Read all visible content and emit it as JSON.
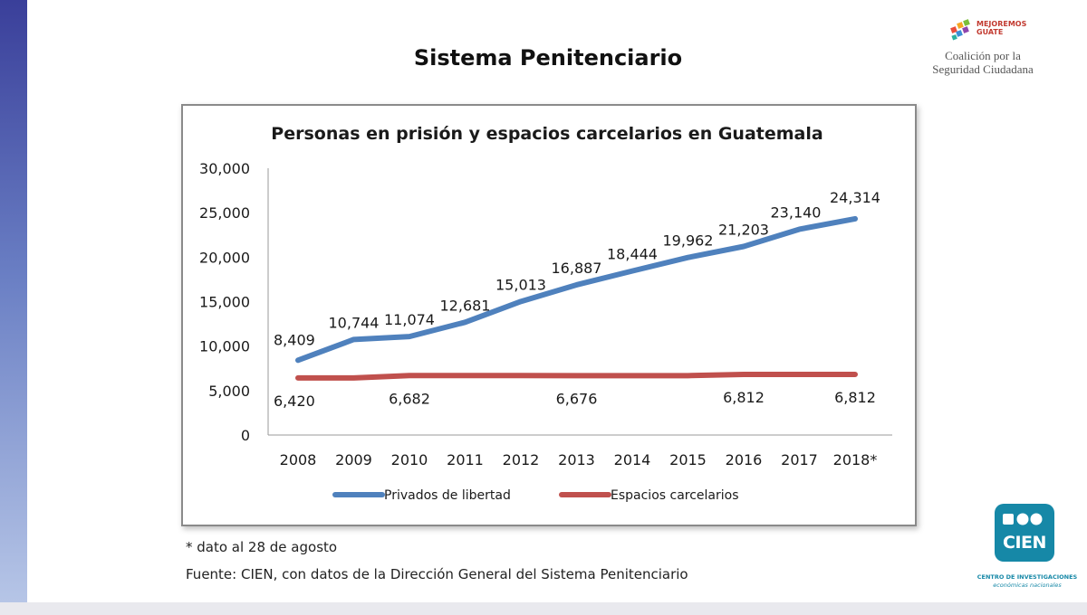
{
  "slide": {
    "title": "Sistema Penitenciario",
    "note": "* dato al 28 de agosto",
    "source": "Fuente: CIEN, con datos de la Dirección General del Sistema Penitenciario"
  },
  "logos": {
    "mejoremos_line1": "MEJOREMOS",
    "mejoremos_line2": "GUATE",
    "coalicion_line1": "Coalición por la",
    "coalicion_line2": "Seguridad Ciudadana",
    "cien_name": "CIEN",
    "cien_caption_line1": "CENTRO DE INVESTIGACIONES",
    "cien_caption_line2": "económicas nacionales"
  },
  "colors": {
    "series_blue": "#4f81bd",
    "series_red": "#c0504d",
    "cien_teal": "#1688a7"
  },
  "chart_data": {
    "type": "line",
    "title": "Personas en prisión y espacios carcelarios en Guatemala",
    "xlabel": "",
    "ylabel": "",
    "ylim": [
      0,
      30000
    ],
    "yticks": [
      "30,000",
      "25,000",
      "20,000",
      "15,000",
      "10,000",
      "5,000",
      "0"
    ],
    "categories": [
      "2008",
      "2009",
      "2010",
      "2011",
      "2012",
      "2013",
      "2014",
      "2015",
      "2016",
      "2017",
      "2018*"
    ],
    "series": [
      {
        "name": "Privados de libertad",
        "color": "#4f81bd",
        "values": [
          8409,
          10744,
          11074,
          12681,
          15013,
          16887,
          18444,
          19962,
          21203,
          23140,
          24314
        ],
        "labels": [
          "8,409",
          "10,744",
          "11,074",
          "12,681",
          "15,013",
          "16,887",
          "18,444",
          "19,962",
          "21,203",
          "23,140",
          "24,314"
        ]
      },
      {
        "name": "Espacios carcelarios",
        "color": "#c0504d",
        "values": [
          6420,
          6420,
          6682,
          6682,
          6682,
          6676,
          6676,
          6676,
          6812,
          6812,
          6812
        ],
        "labels": [
          "6,420",
          "",
          "6,682",
          "",
          "",
          "6,676",
          "",
          "",
          "6,812",
          "",
          "6,812"
        ]
      }
    ],
    "legend": "bottom"
  }
}
